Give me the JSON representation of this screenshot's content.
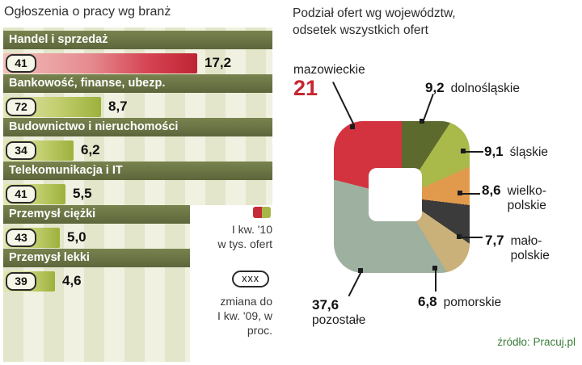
{
  "left_chart": {
    "title": "Ogłoszenia o pracy wg branż",
    "categories": [
      {
        "label": "Handel i sprzedaż",
        "change": "41",
        "value": "17,2"
      },
      {
        "label": "Bankowość, finanse, ubezp.",
        "change": "72",
        "value": "8,7"
      },
      {
        "label": "Budownictwo i nieruchomości",
        "change": "34",
        "value": "6,2"
      },
      {
        "label": "Telekomunikacja i IT",
        "change": "41",
        "value": "5,5"
      },
      {
        "label": "Przemysł ciężki",
        "change": "43",
        "value": "5,0"
      },
      {
        "label": "Przemysł lekki",
        "change": "39",
        "value": "4,6"
      }
    ],
    "legend": {
      "series_line1": "I kw. '10",
      "series_line2": "w tys. ofert",
      "badge_symbol": "xxx",
      "change_line1": "zmiana do",
      "change_line2": "I kw. '09, w proc."
    }
  },
  "right_chart": {
    "title_line1": "Podział ofert wg województw,",
    "title_line2": "odsetek wszystkich ofert",
    "segments": [
      {
        "name": "mazowieckie",
        "value": "21",
        "color": "#d2333f"
      },
      {
        "name": "dolnośląskie",
        "value": "9,2",
        "color": "#5c6a2e"
      },
      {
        "name": "śląskie",
        "value": "9,1",
        "color": "#a9ba4b"
      },
      {
        "name": "wielkopolskie",
        "name_line1": "wielko-",
        "name_line2": "polskie",
        "value": "8,6",
        "color": "#e19a4c"
      },
      {
        "name": "małopolskie",
        "name_line1": "mało-",
        "name_line2": "polskie",
        "value": "7,7",
        "color": "#3b3b3b"
      },
      {
        "name": "pomorskie",
        "value": "6,8",
        "color": "#c9b179"
      },
      {
        "name": "pozostałe",
        "value": "37,6",
        "color": "#9eb09f"
      }
    ],
    "source": "źródło: Pracuj.pl"
  },
  "colors": {
    "accent_red": "#c62531",
    "bar_red": "#bf2434",
    "bar_green": "#9db13c",
    "header_band": "#5c663b"
  },
  "chart_data": [
    {
      "type": "bar",
      "orientation": "horizontal",
      "title": "Ogłoszenia o pracy wg branż",
      "categories": [
        "Handel i sprzedaż",
        "Bankowość, finanse, ubezp.",
        "Budownictwo i nieruchomości",
        "Telekomunikacja i IT",
        "Przemysł ciężki",
        "Przemysł lekki"
      ],
      "series": [
        {
          "name": "I kw. '10 w tys. ofert",
          "values": [
            17.2,
            8.7,
            6.2,
            5.5,
            5.0,
            4.6
          ]
        },
        {
          "name": "zmiana do I kw. '09, w proc.",
          "values": [
            41,
            72,
            34,
            41,
            43,
            39
          ]
        }
      ],
      "xlim": [
        0,
        18
      ]
    },
    {
      "type": "pie",
      "title": "Podział ofert wg województw, odsetek wszystkich ofert",
      "categories": [
        "mazowieckie",
        "dolnośląskie",
        "śląskie",
        "wielkopolskie",
        "małopolskie",
        "pomorskie",
        "pozostałe"
      ],
      "values": [
        21,
        9.2,
        9.1,
        8.6,
        7.7,
        6.8,
        37.6
      ],
      "unit": "%",
      "source": "źródło: Pracuj.pl"
    }
  ]
}
